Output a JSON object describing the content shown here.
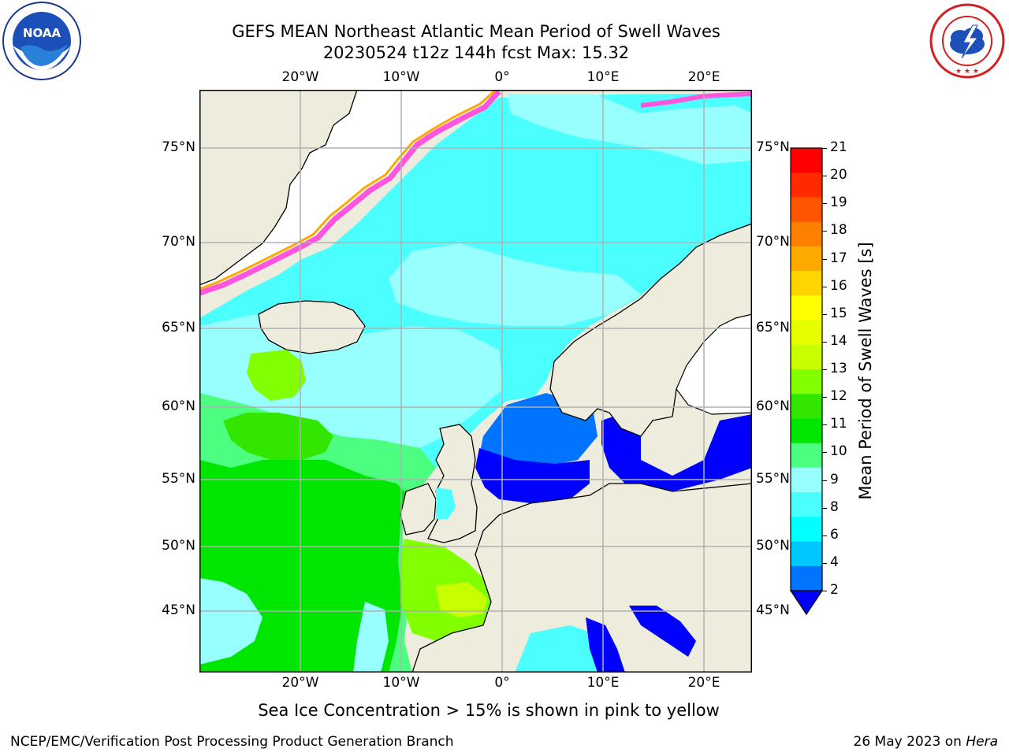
{
  "header": {
    "title_line1": "GEFS MEAN Northeast Atlantic Mean Period of Swell Waves",
    "title_line2": "20230524 t12z 144h fcst   Max: 15.32"
  },
  "logos": {
    "left": {
      "name": "noaa-logo",
      "text": "NOAA",
      "ring_text": "NATIONAL OCEANIC AND ATMOSPHERIC ADMINISTRATION · U.S. DEPARTMENT OF COMMERCE"
    },
    "right": {
      "name": "nws-logo",
      "ring_text": "NATIONAL WEATHER SERVICE"
    }
  },
  "map": {
    "lon_labels": [
      "20°W",
      "10°W",
      "0°",
      "10°E",
      "20°E"
    ],
    "lat_labels": [
      "75°N",
      "70°N",
      "65°N",
      "60°N",
      "55°N",
      "50°N",
      "45°N"
    ],
    "colors": {
      "land": "#eeecdc",
      "ice_free": "#ffffff",
      "grid": "#b0b0b0"
    }
  },
  "colorbar": {
    "label": "Mean Period of Swell Waves [s]",
    "ticks": [
      "21",
      "20",
      "19",
      "18",
      "17",
      "16",
      "15",
      "14",
      "13",
      "12",
      "11",
      "10",
      "9",
      "8",
      "6",
      "4",
      "2"
    ],
    "colors": [
      "#ff0000",
      "#ff2a00",
      "#ff5500",
      "#ff7f00",
      "#ffaa00",
      "#ffd400",
      "#ffff00",
      "#e5ff00",
      "#c8ff00",
      "#82ff00",
      "#32e600",
      "#00e600",
      "#4dff80",
      "#98ffff",
      "#4cffff",
      "#00ffff",
      "#00c8ff",
      "#0073ff"
    ],
    "under_color": "#0000ff"
  },
  "ice_note": "Sea Ice Concentration > 15% is shown in pink to yellow",
  "footer": {
    "left": "NCEP/EMC/Verification Post Processing Product Generation Branch",
    "date": "26 May 2023 on ",
    "host": "Hera"
  }
}
